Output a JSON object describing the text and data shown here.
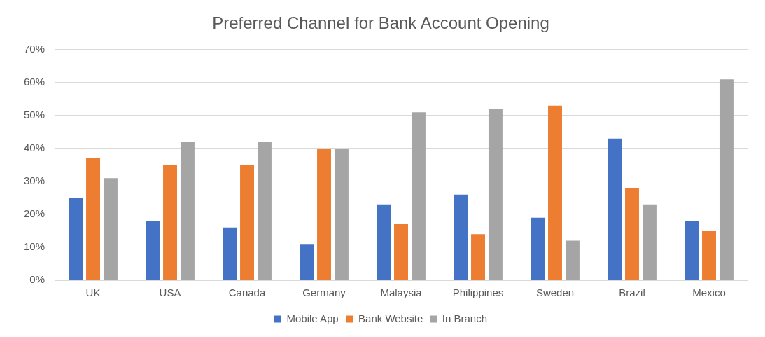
{
  "chart_data": {
    "type": "bar",
    "title": "Preferred Channel for Bank Account Opening",
    "categories": [
      "UK",
      "USA",
      "Canada",
      "Germany",
      "Malaysia",
      "Philippines",
      "Sweden",
      "Brazil",
      "Mexico"
    ],
    "series": [
      {
        "name": "Mobile App",
        "color": "#4472c4",
        "values": [
          25,
          18,
          16,
          11,
          23,
          26,
          19,
          43,
          18
        ]
      },
      {
        "name": "Bank Website",
        "color": "#ed7d31",
        "values": [
          37,
          35,
          35,
          40,
          17,
          14,
          53,
          28,
          15
        ]
      },
      {
        "name": "In Branch",
        "color": "#a5a5a5",
        "values": [
          31,
          42,
          42,
          40,
          51,
          52,
          12,
          23,
          61
        ]
      }
    ],
    "ylim": [
      0,
      70
    ],
    "yticks": [
      {
        "value": 0,
        "label": "0%"
      },
      {
        "value": 10,
        "label": "10%"
      },
      {
        "value": 20,
        "label": "20%"
      },
      {
        "value": 30,
        "label": "30%"
      },
      {
        "value": 40,
        "label": "40%"
      },
      {
        "value": 50,
        "label": "50%"
      },
      {
        "value": 60,
        "label": "60%"
      },
      {
        "value": 70,
        "label": "70%"
      }
    ],
    "grid": "y",
    "legend": "bottom"
  }
}
